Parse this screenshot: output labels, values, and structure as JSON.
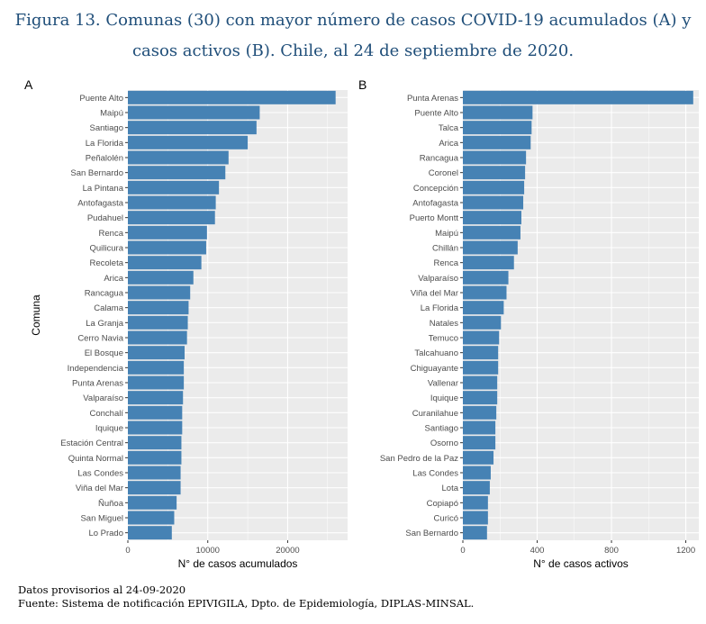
{
  "title_line1": "Figura 13. Comunas (30) con mayor número de casos COVID-19 acumulados (A) y",
  "title_line2": "casos activos (B). Chile, al 24 de septiembre de 2020.",
  "footer_line1": "Datos provisorios al 24-09-2020",
  "footer_line2": "Fuente: Sistema de notificación EPIVIGILA, Dpto. de Epidemiología, DIPLAS-MINSAL.",
  "colors": {
    "bar": "#4682B4",
    "panel_bg": "#EBEBEB",
    "grid": "#FFFFFF",
    "title": "#1F4E79"
  },
  "chart_data": [
    {
      "panel": "A",
      "type": "bar",
      "orientation": "horizontal",
      "ylabel": "Comuna",
      "xlabel": "N° de casos acumulados",
      "xlim": [
        0,
        27500
      ],
      "xticks": [
        0,
        10000,
        20000
      ],
      "grid": true,
      "categories": [
        "Puente Alto",
        "Maipú",
        "Santiago",
        "La Florida",
        "Peñalolén",
        "San Bernardo",
        "La Pintana",
        "Antofagasta",
        "Pudahuel",
        "Renca",
        "Quilicura",
        "Recoleta",
        "Arica",
        "Rancagua",
        "Calama",
        "La Granja",
        "Cerro Navia",
        "El Bosque",
        "Independencia",
        "Punta Arenas",
        "Valparaíso",
        "Conchalí",
        "Iquique",
        "Estación Central",
        "Quinta Normal",
        "Las Condes",
        "Viña del Mar",
        "Ñuñoa",
        "San Miguel",
        "Lo Prado"
      ],
      "values": [
        26000,
        16500,
        16100,
        15000,
        12600,
        12200,
        11400,
        11000,
        10900,
        9900,
        9800,
        9200,
        8200,
        7800,
        7600,
        7500,
        7400,
        7100,
        7000,
        7000,
        6900,
        6800,
        6800,
        6700,
        6700,
        6600,
        6600,
        6100,
        5800,
        5500
      ]
    },
    {
      "panel": "B",
      "type": "bar",
      "orientation": "horizontal",
      "ylabel": "",
      "xlabel": "N° de casos activos",
      "xlim": [
        0,
        1270
      ],
      "xticks": [
        0,
        400,
        800,
        1200
      ],
      "grid": true,
      "categories": [
        "Punta Arenas",
        "Puente Alto",
        "Talca",
        "Arica",
        "Rancagua",
        "Coronel",
        "Concepción",
        "Antofagasta",
        "Puerto Montt",
        "Maipú",
        "Chillán",
        "Renca",
        "Valparaíso",
        "Viña del Mar",
        "La Florida",
        "Natales",
        "Temuco",
        "Talcahuano",
        "Chiguayante",
        "Vallenar",
        "Iquique",
        "Curanilahue",
        "Santiago",
        "Osorno",
        "San Pedro de la Paz",
        "Las Condes",
        "Lota",
        "Copiapó",
        "Curicó",
        "San Bernardo"
      ],
      "values": [
        1240,
        375,
        370,
        365,
        340,
        335,
        330,
        325,
        315,
        310,
        295,
        275,
        245,
        235,
        220,
        205,
        195,
        190,
        190,
        185,
        185,
        180,
        175,
        175,
        165,
        150,
        145,
        135,
        135,
        130
      ]
    }
  ]
}
